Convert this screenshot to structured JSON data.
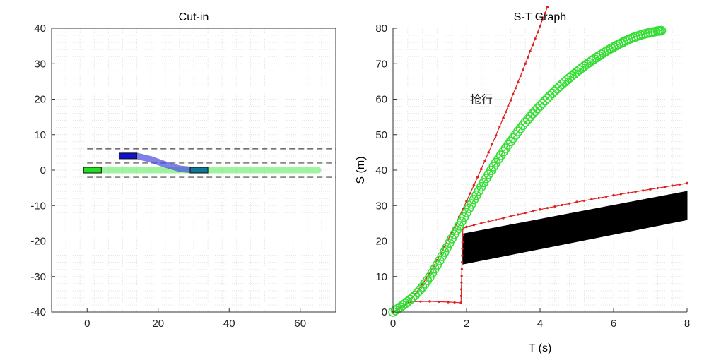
{
  "chart_data": [
    {
      "type": "line",
      "title": "Cut-in",
      "xlabel": "",
      "ylabel": "",
      "xlim": [
        -10,
        70
      ],
      "ylim": [
        -40,
        40
      ],
      "xticks": [
        0,
        20,
        40,
        60
      ],
      "yticks": [
        -40,
        -30,
        -20,
        -10,
        0,
        10,
        20,
        30,
        40
      ],
      "grid": true,
      "lane_lines": [
        {
          "y": 6,
          "x": [
            0,
            70
          ],
          "style": "dashed"
        },
        {
          "y": 2,
          "x": [
            0,
            70
          ],
          "style": "dashed"
        },
        {
          "y": -2,
          "x": [
            0,
            70
          ],
          "style": "dashed"
        }
      ],
      "series": [
        {
          "color": "#77ee77",
          "x": [
            0,
            65
          ],
          "y": [
            0,
            0
          ]
        },
        {
          "color": "#4a4ae0",
          "x": [
            10,
            14,
            18,
            22,
            26,
            30,
            33
          ],
          "y": [
            4,
            4,
            3,
            1.6,
            0.4,
            0,
            0
          ]
        }
      ],
      "vehicles": [
        {
          "x": [
            -1,
            4
          ],
          "y": [
            -0.8,
            0.8
          ],
          "color": "#22dd22"
        },
        {
          "x": [
            9,
            14
          ],
          "y": [
            3.2,
            4.8
          ],
          "color": "#1111cc"
        },
        {
          "x": [
            29,
            34
          ],
          "y": [
            -0.8,
            0.8
          ],
          "color": "#117799"
        }
      ]
    },
    {
      "type": "line",
      "title": "S-T Graph",
      "xlabel": "T (s)",
      "ylabel": "S (m)",
      "xlim": [
        0,
        8
      ],
      "ylim": [
        0,
        80
      ],
      "xticks": [
        0,
        2,
        4,
        6,
        8
      ],
      "yticks": [
        0,
        10,
        20,
        30,
        40,
        50,
        60,
        70,
        80
      ],
      "grid": true,
      "annotation": {
        "text": "抢行",
        "x": 2.0,
        "y": 60
      },
      "obstacle": {
        "color": "#000000",
        "polygon_t": [
          1.9,
          8,
          8,
          1.9
        ],
        "polygon_s": [
          22,
          34,
          26,
          13.5
        ]
      },
      "series": [
        {
          "color": "#dd2222",
          "marker": "dot",
          "t": [
            0,
            0.2,
            0.4,
            0.6,
            0.8,
            1.0,
            1.2,
            1.4,
            1.6,
            1.8,
            2.0,
            2.2,
            2.4,
            2.6,
            2.8,
            3.0,
            3.2,
            3.4,
            3.6,
            3.8,
            4.0,
            4.2
          ],
          "s": [
            0,
            1.2,
            2.8,
            5.0,
            7.8,
            11.0,
            14.6,
            18.4,
            22.5,
            26.8,
            31.2,
            35.7,
            40.3,
            45.0,
            49.8,
            54.7,
            59.7,
            64.8,
            70.0,
            75.3,
            80.6,
            86.0
          ]
        },
        {
          "color": "#dd2222",
          "marker": "dot",
          "t": [
            0,
            0.5,
            1.0,
            1.5,
            1.85,
            1.9,
            2.0,
            3.0,
            4.0,
            5.0,
            6.0,
            7.0,
            8.0
          ],
          "s": [
            0,
            2.9,
            3.0,
            2.8,
            2.6,
            23.5,
            24.0,
            26.5,
            28.9,
            31.0,
            32.9,
            34.6,
            36.3
          ]
        },
        {
          "color": "#33dd33",
          "marker": "circle",
          "t": [
            0,
            0.2,
            0.4,
            0.6,
            0.8,
            1.0,
            1.2,
            1.4,
            1.6,
            1.8,
            2.0,
            2.2,
            2.4,
            2.6,
            2.8,
            3.0,
            3.2,
            3.4,
            3.6,
            3.8,
            4.0,
            4.2,
            4.4,
            4.6,
            4.8,
            5.0,
            5.2,
            5.4,
            5.6,
            5.8,
            6.0,
            6.2,
            6.4,
            6.6,
            6.8,
            7.0,
            7.2,
            7.3
          ],
          "s": [
            0,
            1.4,
            2.9,
            4.7,
            7.0,
            9.9,
            13.3,
            16.9,
            20.7,
            24.3,
            28.0,
            31.7,
            35.3,
            38.8,
            42.1,
            45.2,
            48.1,
            50.9,
            53.5,
            55.9,
            58.1,
            60.3,
            62.3,
            64.2,
            66.0,
            67.7,
            69.3,
            70.8,
            72.2,
            73.5,
            74.7,
            75.8,
            76.8,
            77.6,
            78.3,
            78.8,
            79.2,
            79.3
          ]
        }
      ]
    }
  ]
}
